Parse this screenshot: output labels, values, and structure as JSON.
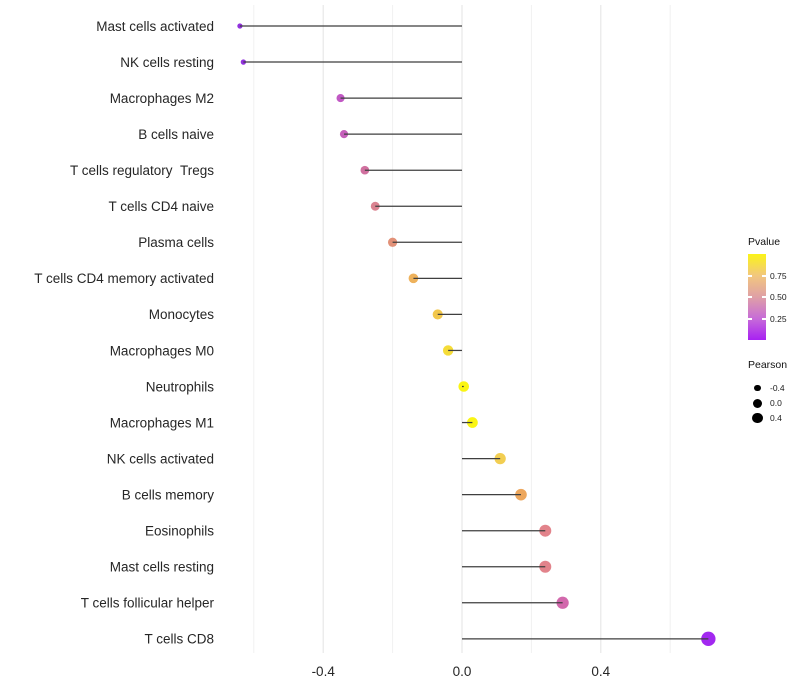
{
  "chart_data": {
    "type": "scatter",
    "variant": "lollipop",
    "title": "",
    "xlabel": "",
    "ylabel": "",
    "xlim": [
      -0.7,
      0.78
    ],
    "grid": "vertical-only",
    "legend_position": "right",
    "x_major_ticks": [
      -0.4,
      0.0,
      0.4
    ],
    "x_major_tick_labels": [
      "-0.4",
      "0.0",
      "0.4"
    ],
    "x_minor_ticks": [
      -0.6,
      -0.2,
      0.2,
      0.6
    ],
    "points": [
      {
        "label": "Mast cells activated",
        "pearson": -0.64,
        "color": "#9232DF"
      },
      {
        "label": "NK cells resting",
        "pearson": -0.63,
        "color": "#9232DF"
      },
      {
        "label": "Macrophages M2",
        "pearson": -0.35,
        "color": "#C158C4"
      },
      {
        "label": "B cells naive",
        "pearson": -0.34,
        "color": "#C55FBA"
      },
      {
        "label": "T cells regulatory  Tregs",
        "pearson": -0.28,
        "color": "#D0709F"
      },
      {
        "label": "T cells CD4 naive",
        "pearson": -0.25,
        "color": "#DA8290"
      },
      {
        "label": "Plasma cells",
        "pearson": -0.2,
        "color": "#E29178"
      },
      {
        "label": "T cells CD4 memory activated",
        "pearson": -0.14,
        "color": "#EEB25C"
      },
      {
        "label": "Monocytes",
        "pearson": -0.07,
        "color": "#F2C74B"
      },
      {
        "label": "Macrophages M0",
        "pearson": -0.04,
        "color": "#F5DC38"
      },
      {
        "label": "Neutrophils",
        "pearson": 0.005,
        "color": "#FAF513"
      },
      {
        "label": "Macrophages M1",
        "pearson": 0.03,
        "color": "#FAF513"
      },
      {
        "label": "NK cells activated",
        "pearson": 0.11,
        "color": "#F2CE52"
      },
      {
        "label": "B cells memory",
        "pearson": 0.17,
        "color": "#EDA75D"
      },
      {
        "label": "Eosinophils",
        "pearson": 0.24,
        "color": "#E2838B"
      },
      {
        "label": "Mast cells resting",
        "pearson": 0.24,
        "color": "#E2838B"
      },
      {
        "label": "T cells follicular helper",
        "pearson": 0.29,
        "color": "#D268AC"
      },
      {
        "label": "T cells CD8",
        "pearson": 0.71,
        "color": "#A228F0"
      }
    ],
    "legends": {
      "pvalue": {
        "title": "Pvalue",
        "tick_labels": [
          "0.75",
          "0.50",
          "0.25"
        ],
        "tick_values": [
          0.75,
          0.5,
          0.25
        ],
        "range": [
          0,
          1
        ],
        "gradient_top_to_bottom": [
          "#FBF318",
          "#F2C77E",
          "#DFA0A6",
          "#C76CD8",
          "#A821F2"
        ]
      },
      "pearson": {
        "title": "Pearson",
        "dot_color": "#000000",
        "items": [
          {
            "label": "-0.4",
            "value": -0.4,
            "radius": 3.4
          },
          {
            "label": "0.0",
            "value": 0.0,
            "radius": 4.5
          },
          {
            "label": "0.4",
            "value": 0.4,
            "radius": 5.2
          }
        ]
      }
    },
    "style": {
      "background": "#FFFFFF",
      "segment_color": "#3F3F3F",
      "grid_major_color": "#E3E3E3",
      "grid_minor_color": "#F1F1F1",
      "axis_text_color": "#262626"
    }
  }
}
